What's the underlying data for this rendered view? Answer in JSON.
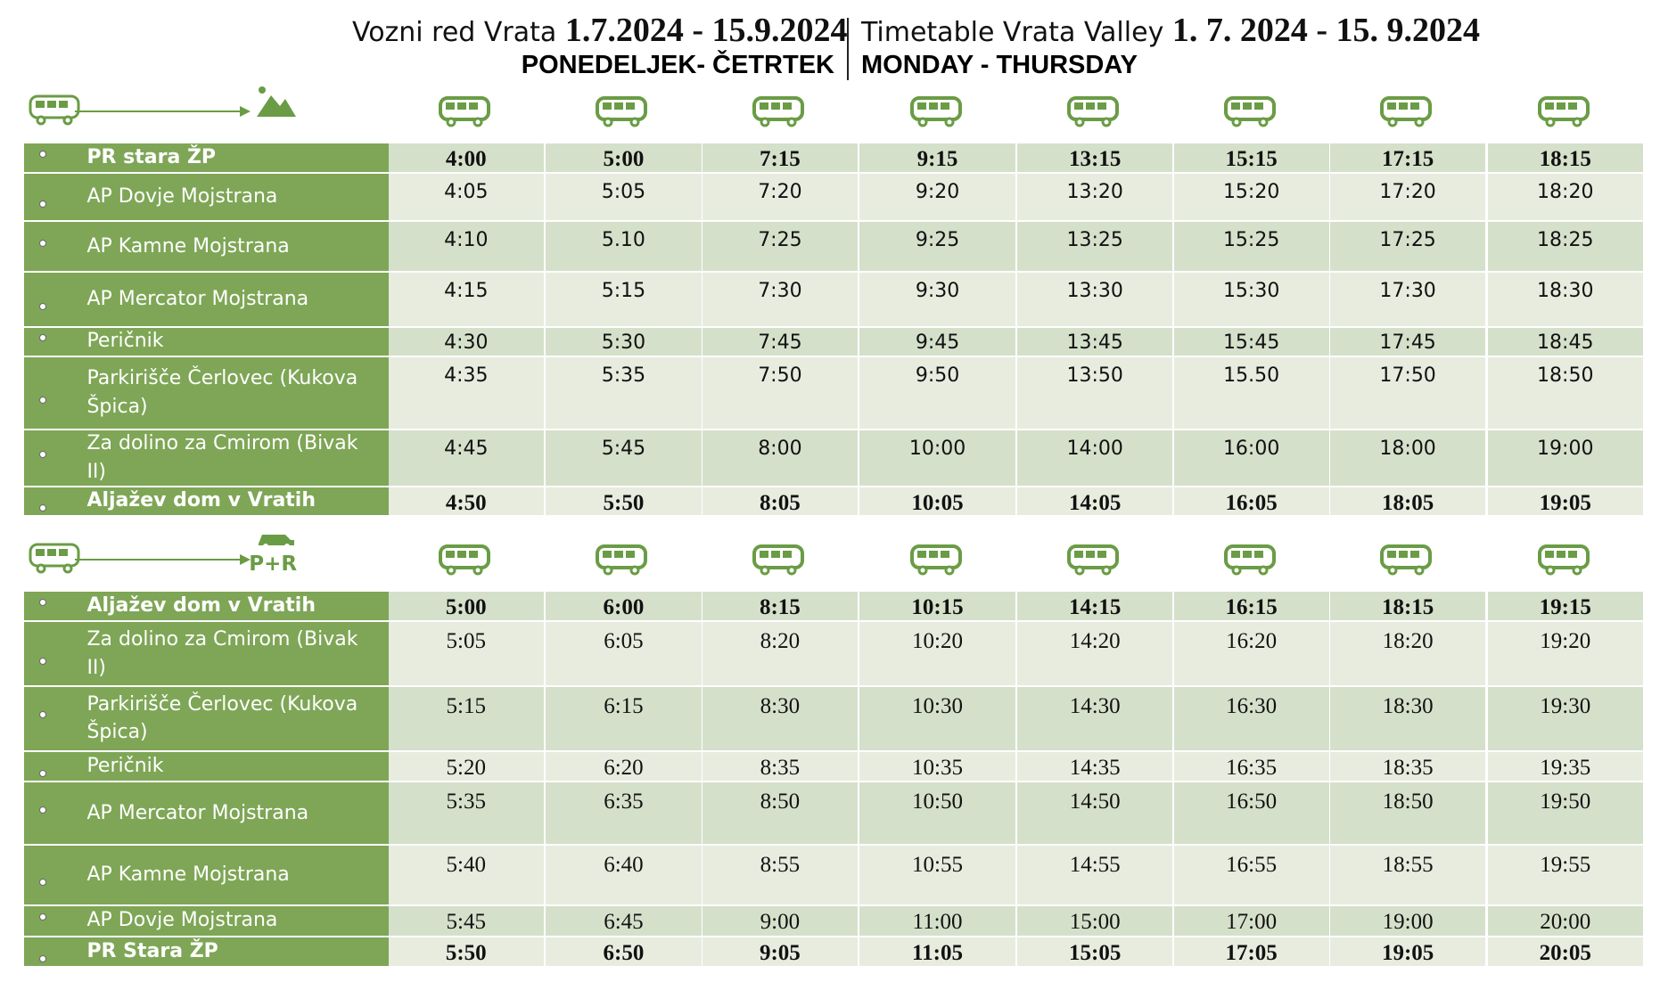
{
  "header": {
    "title_si": "Vozni red Vrata",
    "dates_si": "1.7.2024 - 15.9.2024",
    "days_si": "PONEDELJEK- ČETRTEK",
    "title_en": "Timetable Vrata Valley",
    "dates_en": "1. 7. 2024 - 15. 9.2024",
    "days_en": "MONDAY - THURSDAY"
  },
  "tables": [
    {
      "rows": [
        {
          "stop": "PR stara ŽP",
          "times": [
            "4:00",
            "5:00",
            "7:15",
            "9:15",
            "13:15",
            "15:15",
            "17:15",
            "18:15"
          ]
        },
        {
          "stop": "AP Dovje Mojstrana",
          "times": [
            "4:05",
            "5:05",
            "7:20",
            "9:20",
            "13:20",
            "15:20",
            "17:20",
            "18:20"
          ]
        },
        {
          "stop": "AP Kamne Mojstrana",
          "times": [
            "4:10",
            "5.10",
            "7:25",
            "9:25",
            "13:25",
            "15:25",
            "17:25",
            "18:25"
          ]
        },
        {
          "stop": "AP Mercator Mojstrana",
          "times": [
            "4:15",
            "5:15",
            "7:30",
            "9:30",
            "13:30",
            "15:30",
            "17:30",
            "18:30"
          ]
        },
        {
          "stop": "Peričnik",
          "times": [
            "4:30",
            "5:30",
            "7:45",
            "9:45",
            "13:45",
            "15:45",
            "17:45",
            "18:45"
          ]
        },
        {
          "stop": "Parkirišče Čerlovec (Kukova Špica)",
          "times": [
            "4:35",
            "5:35",
            "7:50",
            "9:50",
            "13:50",
            "15.50",
            "17:50",
            "18:50"
          ]
        },
        {
          "stop": "Za dolino za Cmirom (Bivak II)",
          "times": [
            "4:45",
            "5:45",
            "8:00",
            "10:00",
            "14:00",
            "16:00",
            "18:00",
            "19:00"
          ]
        },
        {
          "stop": "Aljažev dom v Vratih",
          "times": [
            "4:50",
            "5:50",
            "8:05",
            "10:05",
            "14:05",
            "16:05",
            "18:05",
            "19:05"
          ]
        }
      ]
    },
    {
      "label": "P+R",
      "rows": [
        {
          "stop": "Aljažev dom v Vratih",
          "times": [
            "5:00",
            "6:00",
            "8:15",
            "10:15",
            "14:15",
            "16:15",
            "18:15",
            "19:15"
          ]
        },
        {
          "stop": "Za dolino za Cmirom (Bivak II)",
          "times": [
            "5:05",
            "6:05",
            "8:20",
            "10:20",
            "14:20",
            "16:20",
            "18:20",
            "19:20"
          ]
        },
        {
          "stop": "Parkirišče Čerlovec (Kukova Špica)",
          "times": [
            "5:15",
            "6:15",
            "8:30",
            "10:30",
            "14:30",
            "16:30",
            "18:30",
            "19:30"
          ]
        },
        {
          "stop": "Peričnik",
          "times": [
            "5:20",
            "6:20",
            "8:35",
            "10:35",
            "14:35",
            "16:35",
            "18:35",
            "19:35"
          ]
        },
        {
          "stop": "AP Mercator Mojstrana",
          "times": [
            "5:35",
            "6:35",
            "8:50",
            "10:50",
            "14:50",
            "16:50",
            "18:50",
            "19:50"
          ]
        },
        {
          "stop": "AP Kamne Mojstrana",
          "times": [
            "5:40",
            "6:40",
            "8:55",
            "10:55",
            "14:55",
            "16:55",
            "18:55",
            "19:55"
          ]
        },
        {
          "stop": "AP Dovje Mojstrana",
          "times": [
            "5:45",
            "6:45",
            "9:00",
            "11:00",
            "15:00",
            "17:00",
            "19:00",
            "20:00"
          ]
        },
        {
          "stop": "PR Stara ŽP",
          "times": [
            "5:50",
            "6:50",
            "9:05",
            "11:05",
            "15:05",
            "17:05",
            "19:05",
            "20:05"
          ]
        }
      ]
    }
  ]
}
